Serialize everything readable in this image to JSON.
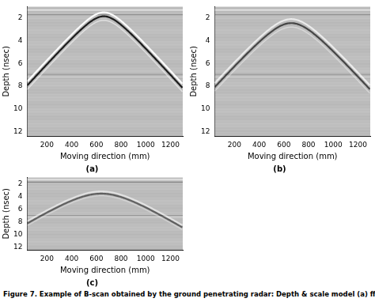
{
  "chart_data": [
    {
      "type": "image",
      "title": "(a)",
      "x_label": "Moving direction (mm)",
      "y_label": "Depth (nsec)",
      "xlim": [
        40,
        1300
      ],
      "xticks": [
        200,
        400,
        600,
        800,
        1000,
        1200
      ],
      "ylim": [
        1,
        12.4
      ],
      "yticks": [
        2,
        4,
        6,
        8,
        10,
        12
      ],
      "grid": false,
      "reflection_apex": {
        "x": 660,
        "depth": 1.5
      }
    },
    {
      "type": "image",
      "title": "(b)",
      "x_label": "Moving direction (mm)",
      "y_label": "Depth (nsec)",
      "xlim": [
        40,
        1300
      ],
      "xticks": [
        200,
        400,
        600,
        800,
        1000,
        1200
      ],
      "ylim": [
        1,
        12.4
      ],
      "yticks": [
        2,
        4,
        6,
        8,
        10,
        12
      ],
      "grid": false,
      "reflection_apex": {
        "x": 660,
        "depth": 2.1
      }
    },
    {
      "type": "image",
      "title": "(c)",
      "x_label": "Moving direction (mm)",
      "y_label": "Depth (nsec)",
      "xlim": [
        40,
        1300
      ],
      "xticks": [
        200,
        400,
        600,
        800,
        1000,
        1200
      ],
      "ylim": [
        1,
        12.4
      ],
      "yticks": [
        2,
        4,
        6,
        8,
        10,
        12
      ],
      "grid": false,
      "reflection_apex": {
        "x": 640,
        "depth": 3.2
      }
    }
  ],
  "caption": "Figure 7. Example of B-scan obtained by the ground penetrating radar: Depth & scale model (a) ff"
}
